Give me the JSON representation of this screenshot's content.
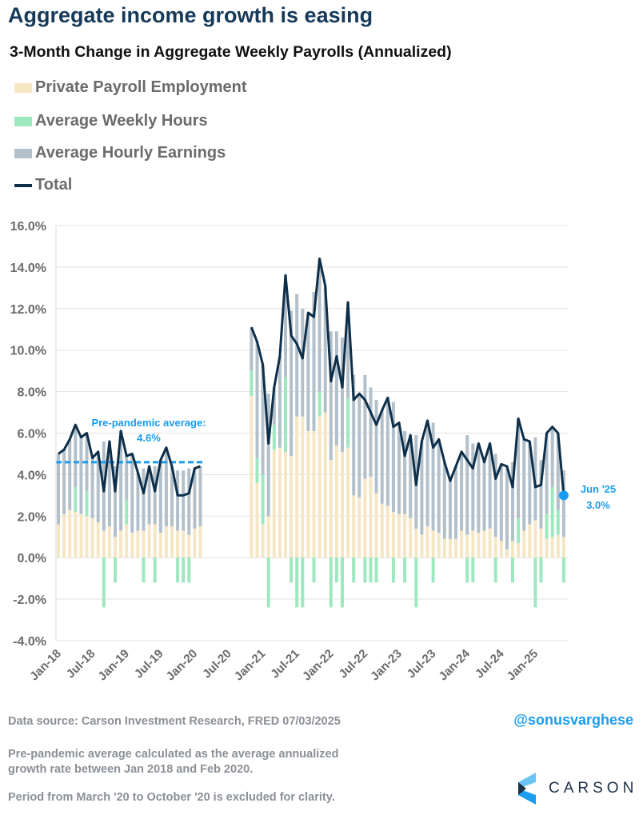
{
  "header": {
    "title": "Aggregate income growth is easing",
    "subtitle": "3-Month Change in Aggregate Weekly Payrolls (Annualized)"
  },
  "legend": [
    {
      "label": "Private Payroll Employment",
      "color": "#f5e6c4"
    },
    {
      "label": "Average Weekly Hours",
      "color": "#9ee8c0"
    },
    {
      "label": "Average Hourly Earnings",
      "color": "#b3c0ca"
    },
    {
      "label": "Total",
      "color": "#0e2f4a"
    }
  ],
  "chart_data": {
    "type": "bar",
    "stacked": true,
    "title": "3-Month Change in Aggregate Weekly Payrolls (Annualized)",
    "ylim": [
      -4,
      16
    ],
    "yticks": [
      "16.0%",
      "14.0%",
      "12.0%",
      "10.0%",
      "8.0%",
      "6.0%",
      "4.0%",
      "2.0%",
      "0.0%",
      "-2.0%",
      "-4.0%"
    ],
    "ytick_values": [
      16,
      14,
      12,
      10,
      8,
      6,
      4,
      2,
      0,
      -2,
      -4
    ],
    "xticks": [
      "Jan-18",
      "Jul-18",
      "Jan-19",
      "Jul-19",
      "Jan-20",
      "Jul-20",
      "Jan-21",
      "Jul-21",
      "Jan-22",
      "Jul-22",
      "Jan-23",
      "Jul-23",
      "Jan-24",
      "Jul-24",
      "Jan-25"
    ],
    "grid": true,
    "legend_position": "top-left",
    "x": [
      "2018-01",
      "2018-02",
      "2018-03",
      "2018-04",
      "2018-05",
      "2018-06",
      "2018-07",
      "2018-08",
      "2018-09",
      "2018-10",
      "2018-11",
      "2018-12",
      "2019-01",
      "2019-02",
      "2019-03",
      "2019-04",
      "2019-05",
      "2019-06",
      "2019-07",
      "2019-08",
      "2019-09",
      "2019-10",
      "2019-11",
      "2019-12",
      "2020-01",
      "2020-02",
      "2020-11",
      "2020-12",
      "2021-01",
      "2021-02",
      "2021-03",
      "2021-04",
      "2021-05",
      "2021-06",
      "2021-07",
      "2021-08",
      "2021-09",
      "2021-10",
      "2021-11",
      "2021-12",
      "2022-01",
      "2022-02",
      "2022-03",
      "2022-04",
      "2022-05",
      "2022-06",
      "2022-07",
      "2022-08",
      "2022-09",
      "2022-10",
      "2022-11",
      "2022-12",
      "2023-01",
      "2023-02",
      "2023-03",
      "2023-04",
      "2023-05",
      "2023-06",
      "2023-07",
      "2023-08",
      "2023-09",
      "2023-10",
      "2023-11",
      "2023-12",
      "2024-01",
      "2024-02",
      "2024-03",
      "2024-04",
      "2024-05",
      "2024-06",
      "2024-07",
      "2024-08",
      "2024-09",
      "2024-10",
      "2024-11",
      "2024-12",
      "2025-01",
      "2025-02",
      "2025-03",
      "2025-04",
      "2025-05",
      "2025-06"
    ],
    "series": [
      {
        "name": "Private Payroll Employment",
        "color": "#f5e6c4",
        "values": [
          1.6,
          2.1,
          2.3,
          2.2,
          2.1,
          2.0,
          1.9,
          1.7,
          1.3,
          1.5,
          1.0,
          1.3,
          1.6,
          1.2,
          1.3,
          1.3,
          1.6,
          1.6,
          1.2,
          1.5,
          1.5,
          1.3,
          1.3,
          1.1,
          1.4,
          1.5,
          7.8,
          3.6,
          1.6,
          2.0,
          5.2,
          5.3,
          5.1,
          4.9,
          6.8,
          6.8,
          6.1,
          6.1,
          6.8,
          7.0,
          4.7,
          5.4,
          5.1,
          5.3,
          3.0,
          2.9,
          3.8,
          3.9,
          3.1,
          2.6,
          2.5,
          2.2,
          2.1,
          2.1,
          1.9,
          1.4,
          1.1,
          1.5,
          1.3,
          1.2,
          0.9,
          0.9,
          0.9,
          1.3,
          1.1,
          1.3,
          1.2,
          1.3,
          1.4,
          1.0,
          0.8,
          0.4,
          0.8,
          0.7,
          1.3,
          1.6,
          1.8,
          1.4,
          0.9,
          1.0,
          1.1,
          1.0
        ]
      },
      {
        "name": "Average Weekly Hours",
        "color": "#9ee8c0",
        "values": [
          0,
          0,
          0,
          1.2,
          0,
          1.2,
          0,
          0,
          -2.4,
          0,
          -1.2,
          0,
          1.2,
          0,
          0,
          -1.2,
          0,
          -1.2,
          0,
          0,
          0,
          -1.2,
          -1.2,
          -1.2,
          0,
          0,
          1.2,
          1.2,
          2.4,
          -2.4,
          1.2,
          0,
          3.6,
          -1.2,
          -2.4,
          -2.4,
          0,
          -1.2,
          1.2,
          0,
          -2.4,
          -1.2,
          -2.4,
          2.4,
          -1.2,
          0,
          -1.2,
          -1.2,
          -1.2,
          0,
          0,
          -1.2,
          0,
          -1.2,
          0,
          -2.4,
          0,
          0,
          -1.2,
          0,
          0,
          0,
          0,
          0,
          -1.2,
          -1.2,
          0,
          0,
          0,
          -1.2,
          0,
          0,
          -1.2,
          1.2,
          0,
          0,
          -2.4,
          -1.2,
          1.2,
          2.4,
          1.2,
          -1.2
        ]
      },
      {
        "name": "Average Hourly Earnings",
        "color": "#b3c0ca",
        "values": [
          3.4,
          3.1,
          3.4,
          3.0,
          3.7,
          2.8,
          2.9,
          3.4,
          4.3,
          4.1,
          3.4,
          4.8,
          2.1,
          3.8,
          2.8,
          3.0,
          2.8,
          2.8,
          3.5,
          3.8,
          2.9,
          2.9,
          2.9,
          3.2,
          2.9,
          2.9,
          2.1,
          5.6,
          5.3,
          5.9,
          1.8,
          4.4,
          4.9,
          7.0,
          5.9,
          5.2,
          5.7,
          6.7,
          6.4,
          6.1,
          6.2,
          5.5,
          5.5,
          4.6,
          5.8,
          5.0,
          5.0,
          4.3,
          4.5,
          4.5,
          5.2,
          5.3,
          4.4,
          4.0,
          4.0,
          4.5,
          4.5,
          5.1,
          5.2,
          4.5,
          3.7,
          2.8,
          3.5,
          3.8,
          4.8,
          4.2,
          4.3,
          3.3,
          4.1,
          4.0,
          3.7,
          4.0,
          3.8,
          4.8,
          4.4,
          4.0,
          4.0,
          3.3,
          3.9,
          2.9,
          3.7,
          3.2
        ]
      },
      {
        "name": "Total",
        "color": "#0e2f4a",
        "type": "line",
        "values": [
          5.0,
          5.2,
          5.7,
          6.4,
          5.8,
          6.0,
          4.8,
          5.1,
          3.2,
          5.6,
          3.2,
          6.1,
          4.9,
          5.0,
          4.1,
          3.1,
          4.4,
          3.2,
          4.7,
          5.3,
          4.4,
          3.0,
          3.0,
          3.1,
          4.3,
          4.4,
          11.1,
          10.4,
          9.3,
          5.5,
          8.2,
          9.7,
          13.6,
          10.7,
          10.3,
          9.6,
          11.8,
          11.6,
          14.4,
          13.1,
          8.5,
          9.7,
          8.2,
          12.3,
          7.6,
          7.9,
          7.6,
          7.0,
          6.4,
          7.1,
          7.7,
          6.3,
          6.5,
          4.9,
          5.9,
          3.5,
          5.6,
          6.6,
          5.3,
          5.7,
          4.6,
          3.7,
          4.4,
          5.1,
          4.7,
          4.3,
          5.5,
          4.6,
          5.5,
          3.8,
          4.5,
          4.4,
          3.4,
          6.7,
          5.7,
          5.6,
          3.4,
          3.5,
          6.0,
          6.3,
          6.0,
          3.0
        ]
      }
    ],
    "reference_line": {
      "label": "Pre-pandemic average:",
      "value_label": "4.6%",
      "value": 4.6,
      "from": "2018-01",
      "to": "2020-02",
      "color": "#1a9cf0"
    },
    "annotation": {
      "label": "Jun '25",
      "value_label": "3.0%",
      "at": "2025-06",
      "value": 3.0,
      "color": "#1a9cf0"
    }
  },
  "footer": {
    "source": "Data source: Carson Investment Research, FRED   07/03/2025",
    "handle": "@sonusvarghese",
    "note1_line1": "Pre-pandemic average calculated as the average annualized",
    "note1_line2": "growth rate between Jan 2018 and Feb 2020.",
    "note2": "Period from March '20 to October '20 is excluded for clarity.",
    "logo": "CARSON"
  }
}
